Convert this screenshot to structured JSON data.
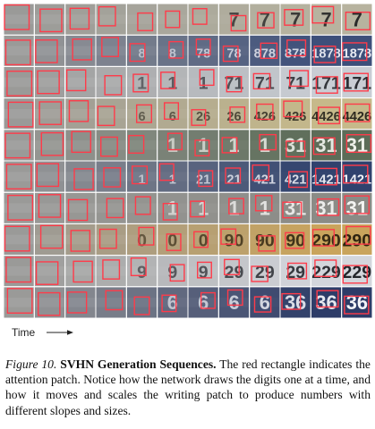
{
  "figure": {
    "time_label": "Time",
    "caption_label": "Figure 10.",
    "caption_title": "SVHN Generation Sequences.",
    "caption_text": "The red rectangle indicates the attention patch. Notice how the network draws the digits one at a time, and how it moves and scales the writing patch to produce numbers with different slopes and sizes."
  },
  "grid": {
    "rows": [
      {
        "digits": "7",
        "bg": "#b7b39f",
        "fg": "#2a2a2a"
      },
      {
        "digits": "1878",
        "bg": "#3d4f7a",
        "fg": "#e8eaf2"
      },
      {
        "digits": "171",
        "bg": "#c9cdd4",
        "fg": "#2b2d33"
      },
      {
        "digits": "4426",
        "bg": "#c6b98a",
        "fg": "#2d2a20"
      },
      {
        "digits": "31",
        "bg": "#5c6c58",
        "fg": "#eef0ea"
      },
      {
        "digits": "1421",
        "bg": "#30426e",
        "fg": "#f0f2f8"
      },
      {
        "digits": "31",
        "bg": "#8b8b86",
        "fg": "#f4f4f2"
      },
      {
        "digits": "290",
        "bg": "#c9a45c",
        "fg": "#2e2410"
      },
      {
        "digits": "229",
        "bg": "#d3d6dc",
        "fg": "#23252a"
      },
      {
        "digits": "36",
        "bg": "#2d3c68",
        "fg": "#f2f3f8"
      }
    ],
    "columns": 12,
    "patch_color": "#ff3b4a"
  }
}
